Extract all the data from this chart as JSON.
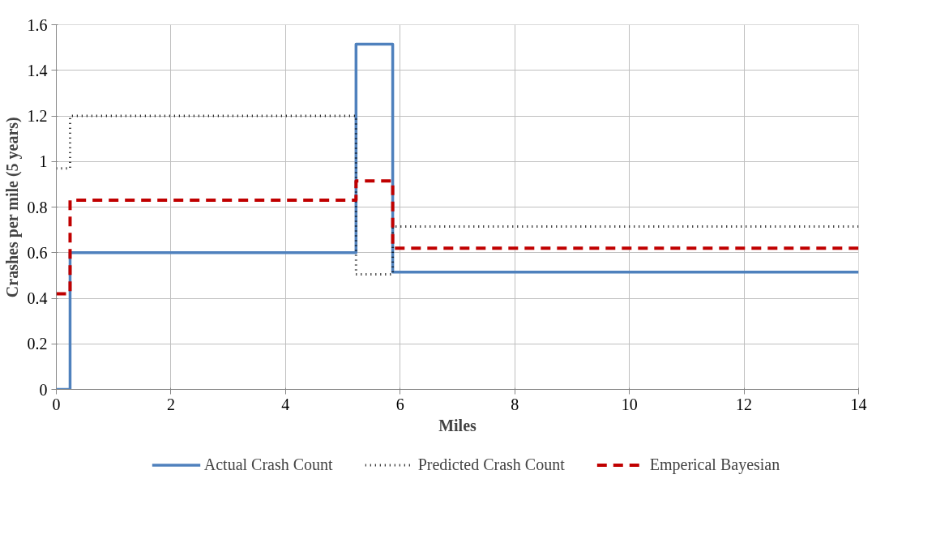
{
  "chart_data": {
    "type": "step",
    "xlabel": "Miles",
    "ylabel": "Crashes per mile (5 years)",
    "x": [
      0,
      0.24,
      5.23,
      5.87,
      14
    ],
    "series": [
      {
        "name": "Actual Crash Count",
        "color": "#4f81bd",
        "line_style": "solid",
        "values": [
          0,
          0.6,
          1.515,
          0.515,
          0.515
        ]
      },
      {
        "name": "Predicted Crash Count",
        "color": "#000000",
        "line_style": "dotted",
        "values": [
          0.97,
          1.2,
          0.505,
          0.715,
          0.715
        ]
      },
      {
        "name": "Emperical Bayesian",
        "color": "#c00000",
        "line_style": "dashed",
        "values": [
          0.42,
          0.83,
          0.915,
          0.62,
          0.62
        ]
      }
    ],
    "xlim": [
      0,
      14
    ],
    "xticks": [
      0,
      2,
      4,
      6,
      8,
      10,
      12,
      14
    ],
    "ylim": [
      0,
      1.6
    ],
    "yticks": [
      0,
      0.2,
      0.4,
      0.6,
      0.8,
      1,
      1.2,
      1.4,
      1.6
    ],
    "grid": true,
    "legend": "bottom",
    "marker": "none"
  }
}
